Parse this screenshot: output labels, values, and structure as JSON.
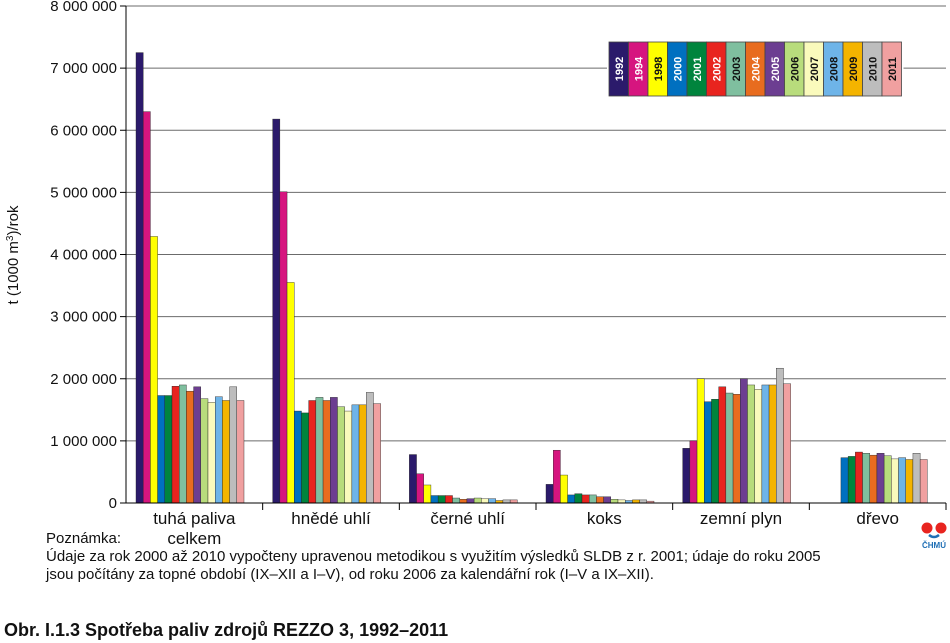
{
  "chart_data": {
    "type": "bar",
    "ylabel": "t (1000 m³)/rok",
    "ylim": [
      0,
      8000000
    ],
    "yticks": [
      "0",
      "1 000 000",
      "2 000 000",
      "3 000 000",
      "4 000 000",
      "5 000 000",
      "6 000 000",
      "7 000 000",
      "8 000 000"
    ],
    "grid": true,
    "legend_position": "top-right",
    "categories": [
      "tuhá paliva\ncelkem",
      "hnědé uhlí",
      "černé uhlí",
      "koks",
      "zemní plyn",
      "dřevo"
    ],
    "series": [
      {
        "name": "1992",
        "color": "#2b1a6b",
        "values": [
          7250000,
          6180000,
          780000,
          300000,
          880000,
          null
        ]
      },
      {
        "name": "1994",
        "color": "#d6157f",
        "values": [
          6300000,
          5010000,
          470000,
          850000,
          1000000,
          null
        ]
      },
      {
        "name": "1998",
        "color": "#ffff00",
        "values": [
          4290000,
          3550000,
          290000,
          450000,
          2000000,
          null
        ]
      },
      {
        "name": "2000",
        "color": "#0070c0",
        "values": [
          1730000,
          1480000,
          120000,
          130000,
          1630000,
          730000
        ]
      },
      {
        "name": "2001",
        "color": "#00843d",
        "values": [
          1730000,
          1450000,
          120000,
          150000,
          1670000,
          750000
        ]
      },
      {
        "name": "2002",
        "color": "#e8241f",
        "values": [
          1880000,
          1650000,
          120000,
          130000,
          1870000,
          820000
        ]
      },
      {
        "name": "2003",
        "color": "#7fbf9f",
        "values": [
          1900000,
          1700000,
          80000,
          130000,
          1770000,
          800000
        ]
      },
      {
        "name": "2004",
        "color": "#e86c1f",
        "values": [
          1800000,
          1650000,
          60000,
          100000,
          1750000,
          770000
        ]
      },
      {
        "name": "2005",
        "color": "#6c3e91",
        "values": [
          1870000,
          1700000,
          70000,
          100000,
          2000000,
          800000
        ]
      },
      {
        "name": "2006",
        "color": "#b8dc7c",
        "values": [
          1680000,
          1550000,
          80000,
          60000,
          1900000,
          760000
        ]
      },
      {
        "name": "2007",
        "color": "#fafabc",
        "values": [
          1620000,
          1480000,
          70000,
          50000,
          1830000,
          710000
        ]
      },
      {
        "name": "2008",
        "color": "#6eb4e8",
        "values": [
          1710000,
          1580000,
          70000,
          40000,
          1900000,
          730000
        ]
      },
      {
        "name": "2009",
        "color": "#f4b400",
        "values": [
          1650000,
          1580000,
          40000,
          50000,
          1900000,
          700000
        ]
      },
      {
        "name": "2010",
        "color": "#bdbdbd",
        "values": [
          1870000,
          1780000,
          50000,
          50000,
          2170000,
          800000
        ]
      },
      {
        "name": "2011",
        "color": "#f0a0a0",
        "values": [
          1650000,
          1600000,
          50000,
          30000,
          1920000,
          700000
        ]
      }
    ]
  },
  "note": {
    "title": "Poznámka:",
    "line1": "Údaje za rok 2000 až 2010 vypočteny upravenou metodikou s využitím výsledků SLDB z r. 2001; údaje do roku 2005",
    "line2": "jsou počítány za topné období (IX–XII a I–V), od roku 2006 za kalendářní rok (I–V a IX–XII)."
  },
  "caption": "Obr. I.1.3  Spotřeba paliv zdrojů REZZO 3, 1992–2011",
  "logo_text": "ČHMÚ"
}
